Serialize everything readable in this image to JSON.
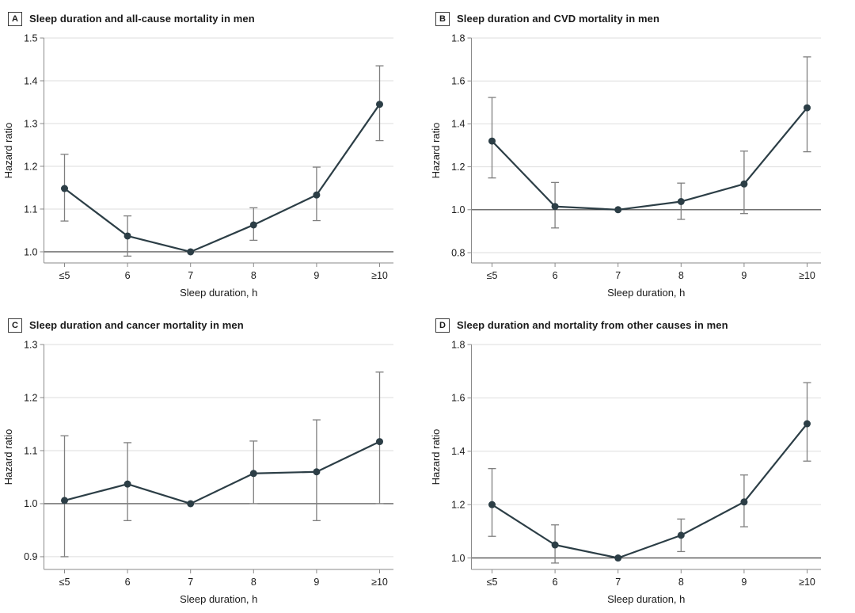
{
  "figure": {
    "kind": "four-panel line chart with error bars",
    "x_axis_label": "Sleep duration, h",
    "y_axis_label": "Hazard ratio"
  },
  "style": {
    "line_color": "#2c3e46",
    "point_color": "#2c3e46",
    "error_bar_color": "#7f7f7f",
    "grid_color": "#dedede",
    "reference_line_color": "#404040",
    "spine_color": "#8a8a8a",
    "text_color": "#1a1a1a",
    "background": "#ffffff"
  },
  "chart_data": [
    {
      "type": "line",
      "panel_label": "A",
      "title": "Sleep duration and all-cause mortality in men",
      "categories": [
        "≤5",
        "6",
        "7",
        "8",
        "9",
        "≥10"
      ],
      "values": [
        1.148,
        1.037,
        1.0,
        1.063,
        1.133,
        1.345
      ],
      "ci_low": [
        1.072,
        0.99,
        null,
        1.027,
        1.073,
        1.26
      ],
      "ci_high": [
        1.228,
        1.084,
        null,
        1.103,
        1.198,
        1.435
      ],
      "xlabel": "Sleep duration, h",
      "ylabel": "Hazard ratio",
      "yticks": [
        1.0,
        1.1,
        1.2,
        1.3,
        1.4,
        1.5
      ],
      "ylim": [
        0.974,
        1.5
      ],
      "ref_line": 1.0,
      "grid": true,
      "legend": false
    },
    {
      "type": "line",
      "panel_label": "B",
      "title": "Sleep duration and CVD mortality in men",
      "categories": [
        "≤5",
        "6",
        "7",
        "8",
        "9",
        "≥10"
      ],
      "values": [
        1.32,
        1.015,
        1.0,
        1.038,
        1.12,
        1.475
      ],
      "ci_low": [
        1.148,
        0.915,
        null,
        0.955,
        0.982,
        1.27
      ],
      "ci_high": [
        1.523,
        1.127,
        null,
        1.124,
        1.273,
        1.712
      ],
      "xlabel": "Sleep duration, h",
      "ylabel": "Hazard ratio",
      "yticks": [
        0.8,
        1.0,
        1.2,
        1.4,
        1.6,
        1.8
      ],
      "ylim": [
        0.752,
        1.8
      ],
      "ref_line": 1.0,
      "grid": true,
      "legend": false
    },
    {
      "type": "line",
      "panel_label": "C",
      "title": "Sleep duration and cancer mortality in men",
      "categories": [
        "≤5",
        "6",
        "7",
        "8",
        "9",
        "≥10"
      ],
      "values": [
        1.006,
        1.037,
        1.0,
        1.057,
        1.06,
        1.117
      ],
      "ci_low": [
        0.9,
        0.968,
        null,
        1.0,
        0.968,
        1.0
      ],
      "ci_high": [
        1.128,
        1.115,
        null,
        1.118,
        1.158,
        1.248
      ],
      "xlabel": "Sleep duration, h",
      "ylabel": "Hazard ratio",
      "yticks": [
        0.9,
        1.0,
        1.1,
        1.2,
        1.3
      ],
      "ylim": [
        0.876,
        1.3
      ],
      "ref_line": 1.0,
      "grid": true,
      "legend": false
    },
    {
      "type": "line",
      "panel_label": "D",
      "title": "Sleep duration and mortality from other causes in men",
      "categories": [
        "≤5",
        "6",
        "7",
        "8",
        "9",
        "≥10"
      ],
      "values": [
        1.2,
        1.049,
        1.0,
        1.085,
        1.21,
        1.503
      ],
      "ci_low": [
        1.081,
        0.981,
        null,
        1.024,
        1.117,
        1.363
      ],
      "ci_high": [
        1.335,
        1.124,
        null,
        1.146,
        1.311,
        1.657
      ],
      "xlabel": "Sleep duration, h",
      "ylabel": "Hazard ratio",
      "yticks": [
        1.0,
        1.2,
        1.4,
        1.6,
        1.8
      ],
      "ylim": [
        0.957,
        1.8
      ],
      "ref_line": 1.0,
      "grid": true,
      "legend": false
    }
  ]
}
